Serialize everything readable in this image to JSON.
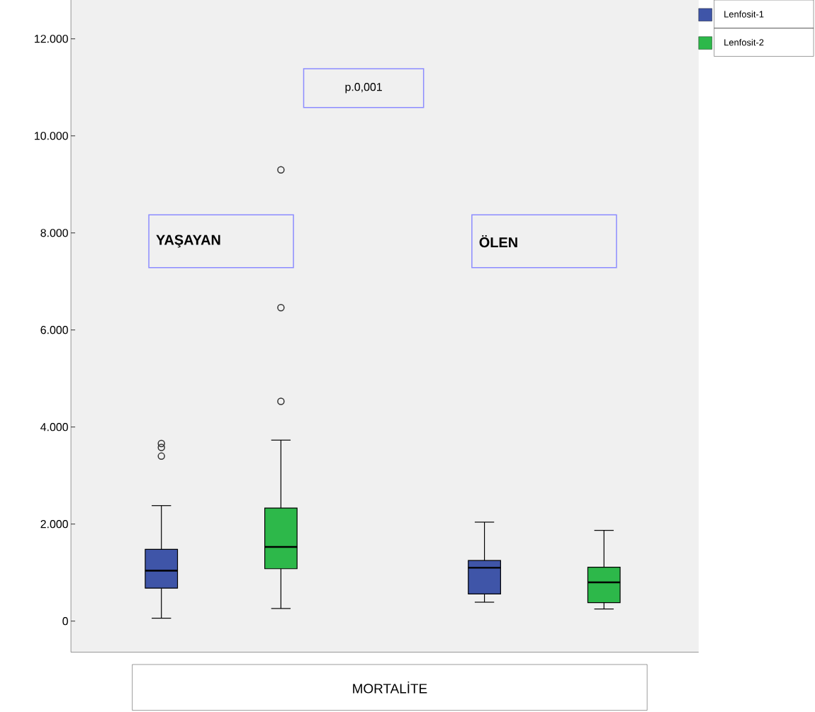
{
  "chart_data": {
    "type": "box",
    "categories": [
      "YAŞAYAN",
      "ÖLEN"
    ],
    "xlabel": "MORTALİTE",
    "annotations": [
      "p.0,001"
    ],
    "legend": "top right",
    "ylim": [
      -640,
      12800
    ],
    "yticks": [
      0,
      {
        "value": 2000,
        "label": "2.000"
      },
      {
        "value": 4000,
        "label": "4.000"
      },
      {
        "value": 6000,
        "label": "6.000"
      },
      {
        "value": 8000,
        "label": "8.000"
      },
      {
        "value": 10000,
        "label": "10.000"
      },
      {
        "value": 12000,
        "label": "12.000"
      }
    ],
    "series": [
      {
        "name": "Lenfosit-1",
        "color": "#3f55a8",
        "boxes": [
          {
            "low": 60,
            "q1": 680,
            "median": 1040,
            "q3": 1480,
            "high": 2380,
            "outliers": [
              3660,
              3580,
              3400
            ]
          },
          {
            "low": 390,
            "q1": 560,
            "median": 1100,
            "q3": 1250,
            "high": 2040
          }
        ]
      },
      {
        "name": "Lenfosit-2",
        "color": "#2db84a",
        "boxes": [
          {
            "low": 260,
            "q1": 1080,
            "median": 1530,
            "q3": 2330,
            "high": 3730,
            "outliers": [
              4530,
              6460,
              9300
            ]
          },
          {
            "low": 250,
            "q1": 380,
            "median": 800,
            "q3": 1110,
            "high": 1870
          }
        ]
      }
    ]
  }
}
